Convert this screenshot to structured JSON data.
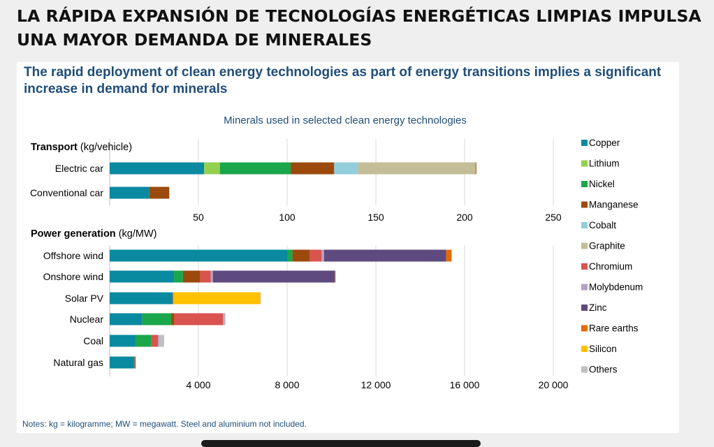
{
  "headline": "LA RÁPIDA EXPANSIÓN DE TECNOLOGÍAS ENERGÉTICAS LIMPIAS IMPULSA UNA MAYOR DEMANDA DE MINERALES",
  "subtitle": "The rapid deployment of clean energy technologies as part of energy transitions implies a significant increase in demand for minerals",
  "notes": "Notes: kg = kilogramme; MW = megawatt. Steel and aluminium not included.",
  "colors": {
    "Copper": "#0a8aa0",
    "Lithium": "#92d050",
    "Nickel": "#1aa64a",
    "Manganese": "#9c4a0c",
    "Cobalt": "#92cddc",
    "Graphite": "#c4bd97",
    "Chromium": "#d9534f",
    "Molybdenum": "#b3a2c7",
    "Zinc": "#5e4a7e",
    "Rare earths": "#e36c0a",
    "Silicon": "#ffc000",
    "Others": "#bfbfbf"
  },
  "chart_data": {
    "type": "bar",
    "orientation": "horizontal-stacked",
    "title": "Minerals used in selected clean energy technologies",
    "legend": [
      "Copper",
      "Lithium",
      "Nickel",
      "Manganese",
      "Cobalt",
      "Graphite",
      "Chromium",
      "Molybdenum",
      "Zinc",
      "Rare earths",
      "Silicon",
      "Others"
    ],
    "legend_position": "right",
    "panels": [
      {
        "id": "transport",
        "label": "Transport",
        "unit": "(kg/vehicle)",
        "xlim": [
          0,
          250
        ],
        "ticks": [
          50,
          100,
          150,
          200,
          250
        ],
        "tick_labels": [
          "50",
          "100",
          "150",
          "200",
          "250"
        ],
        "categories": [
          "Electric car",
          "Conventional car"
        ],
        "series": [
          {
            "name": "Copper",
            "values": [
              53.2,
              22.3
            ]
          },
          {
            "name": "Lithium",
            "values": [
              8.9,
              0
            ]
          },
          {
            "name": "Nickel",
            "values": [
              39.9,
              0
            ]
          },
          {
            "name": "Manganese",
            "values": [
              24.5,
              11.2
            ]
          },
          {
            "name": "Cobalt",
            "values": [
              13.3,
              0
            ]
          },
          {
            "name": "Graphite",
            "values": [
              66.3,
              0
            ]
          },
          {
            "name": "Rare earths",
            "values": [
              0.5,
              0
            ]
          },
          {
            "name": "Others",
            "values": [
              0.3,
              0.3
            ]
          }
        ]
      },
      {
        "id": "power",
        "label": "Power generation",
        "unit": "(kg/MW)",
        "xlim": [
          0,
          20000
        ],
        "ticks": [
          4000,
          8000,
          12000,
          16000,
          20000
        ],
        "tick_labels": [
          "4 000",
          "8 000",
          "12 000",
          "16 000",
          "20 000"
        ],
        "categories": [
          "Offshore wind",
          "Onshore wind",
          "Solar PV",
          "Nuclear",
          "Coal",
          "Natural gas"
        ],
        "series": [
          {
            "name": "Copper",
            "values": [
              8000,
              2900,
              2822,
              1473,
              1150,
              1100
            ]
          },
          {
            "name": "Nickel",
            "values": [
              240,
              404,
              1,
              1297,
              721,
              16
            ]
          },
          {
            "name": "Manganese",
            "values": [
              790,
              780,
              0,
              148,
              0,
              0
            ]
          },
          {
            "name": "Chromium",
            "values": [
              525,
              470,
              0,
              2190,
              308,
              48
            ]
          },
          {
            "name": "Molybdenum",
            "values": [
              109,
              99,
              0,
              70,
              66,
              0
            ]
          },
          {
            "name": "Zinc",
            "values": [
              5500,
              5500,
              30,
              0,
              0,
              0
            ]
          },
          {
            "name": "Rare earths",
            "values": [
              239,
              14,
              0,
              0,
              0,
              0
            ]
          },
          {
            "name": "Silicon",
            "values": [
              0,
              0,
              3937,
              0,
              0,
              0
            ]
          },
          {
            "name": "Others",
            "values": [
              30,
              30,
              10,
              40,
              210,
              10
            ]
          }
        ]
      }
    ]
  }
}
